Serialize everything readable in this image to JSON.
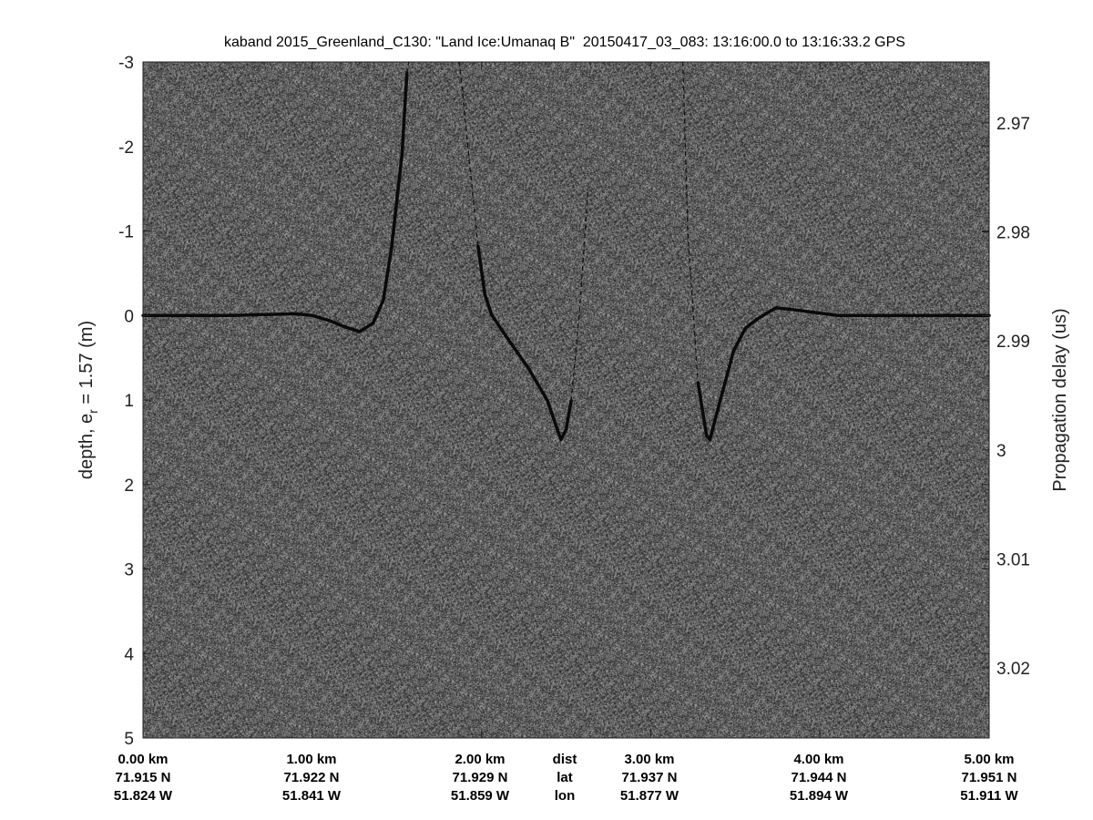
{
  "chart_data": {
    "type": "heatmap",
    "title": "kaband 2015_Greenland_C130: \"Land Ice:Umanaq B\"  20150417_03_083: 13:16:00.0 to 13:16:33.2 GPS",
    "ylabel_left": "depth, e",
    "ylabel_left_sub": "r",
    "ylabel_left_rest": " = 1.57 (m)",
    "ylabel_right": "Propagation delay (us)",
    "ylim_left": [
      -3,
      5
    ],
    "ylim_left_reversed": true,
    "yticks_left": [
      "-3",
      "-2",
      "-1",
      "0",
      "1",
      "2",
      "3",
      "4",
      "5"
    ],
    "yticks_right": [
      "2.97",
      "2.98",
      "2.99",
      "3",
      "3.01",
      "3.02"
    ],
    "xlim_km": [
      0,
      5
    ],
    "colormap": "gray",
    "x_columns": [
      {
        "dist": "0.00 km",
        "lat": "71.915 N",
        "lon": "51.824 W"
      },
      {
        "dist": "1.00 km",
        "lat": "71.922 N",
        "lon": "51.841 W"
      },
      {
        "dist": "2.00 km",
        "lat": "71.929 N",
        "lon": "51.859 W"
      },
      {
        "dist": "dist",
        "lat": "lat",
        "lon": "lon"
      },
      {
        "dist": "3.00 km",
        "lat": "71.937 N",
        "lon": "51.877 W"
      },
      {
        "dist": "4.00 km",
        "lat": "71.944 N",
        "lon": "51.894 W"
      },
      {
        "dist": "5.00 km",
        "lat": "71.951 N",
        "lon": "51.911 W"
      }
    ],
    "reflector_segments": [
      {
        "style": "strong",
        "points": [
          [
            0,
            0
          ],
          [
            0.5,
            0
          ],
          [
            0.9,
            -0.02
          ],
          [
            1.0,
            0.0
          ],
          [
            1.1,
            0.06
          ],
          [
            1.2,
            0.14
          ],
          [
            1.28,
            0.19
          ],
          [
            1.36,
            0.09
          ],
          [
            1.42,
            -0.18
          ],
          [
            1.47,
            -0.82
          ],
          [
            1.53,
            -1.9
          ],
          [
            1.56,
            -2.87
          ]
        ]
      },
      {
        "style": "faint",
        "points": [
          [
            1.56,
            -2.87
          ],
          [
            1.57,
            -3
          ]
        ]
      },
      {
        "style": "faint",
        "points": [
          [
            1.87,
            -3
          ],
          [
            1.93,
            -1.79
          ],
          [
            1.98,
            -0.82
          ]
        ]
      },
      {
        "style": "strong",
        "points": [
          [
            1.98,
            -0.82
          ],
          [
            2.02,
            -0.25
          ],
          [
            2.06,
            -0.01
          ],
          [
            2.15,
            0.26
          ],
          [
            2.28,
            0.63
          ],
          [
            2.39,
            1.01
          ],
          [
            2.44,
            1.3
          ],
          [
            2.47,
            1.47
          ],
          [
            2.5,
            1.35
          ],
          [
            2.53,
            1.01
          ]
        ]
      },
      {
        "style": "faint",
        "points": [
          [
            2.53,
            1.01
          ],
          [
            2.58,
            -0.07
          ],
          [
            2.63,
            -1.5
          ]
        ]
      },
      {
        "style": "faint",
        "points": [
          [
            3.19,
            -3
          ],
          [
            3.22,
            -0.93
          ],
          [
            3.28,
            0.8
          ]
        ]
      },
      {
        "style": "strong",
        "points": [
          [
            3.28,
            0.8
          ],
          [
            3.33,
            1.42
          ],
          [
            3.35,
            1.47
          ],
          [
            3.41,
            1.01
          ],
          [
            3.49,
            0.42
          ],
          [
            3.56,
            0.15
          ],
          [
            3.63,
            0.04
          ],
          [
            3.74,
            -0.09
          ],
          [
            3.84,
            -0.07
          ],
          [
            4.11,
            0.0
          ],
          [
            5.0,
            0.0
          ]
        ]
      }
    ]
  }
}
